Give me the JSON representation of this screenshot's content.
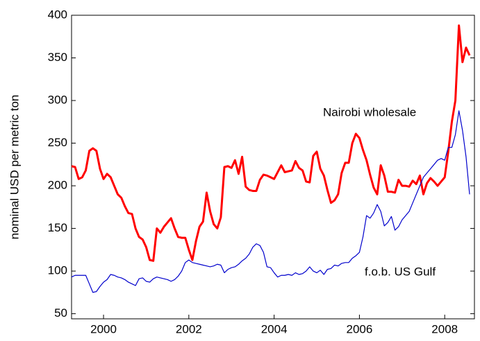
{
  "chart_data": {
    "type": "line",
    "y_label": "nominal USD per metric ton",
    "annotations": [
      "Nairobi wholesale",
      "f.o.b. US Gulf"
    ],
    "x": [
      1999.25,
      1999.333,
      1999.417,
      1999.5,
      1999.583,
      1999.667,
      1999.75,
      1999.833,
      1999.917,
      2000,
      2000.083,
      2000.167,
      2000.25,
      2000.333,
      2000.417,
      2000.5,
      2000.583,
      2000.667,
      2000.75,
      2000.833,
      2000.917,
      2001,
      2001.083,
      2001.167,
      2001.25,
      2001.333,
      2001.417,
      2001.5,
      2001.583,
      2001.667,
      2001.75,
      2001.833,
      2001.917,
      2002,
      2002.083,
      2002.167,
      2002.25,
      2002.333,
      2002.417,
      2002.5,
      2002.583,
      2002.667,
      2002.75,
      2002.833,
      2002.917,
      2003,
      2003.083,
      2003.167,
      2003.25,
      2003.333,
      2003.417,
      2003.5,
      2003.583,
      2003.667,
      2003.75,
      2003.833,
      2003.917,
      2004,
      2004.083,
      2004.167,
      2004.25,
      2004.333,
      2004.417,
      2004.5,
      2004.583,
      2004.667,
      2004.75,
      2004.833,
      2004.917,
      2005,
      2005.083,
      2005.167,
      2005.25,
      2005.333,
      2005.417,
      2005.5,
      2005.583,
      2005.667,
      2005.75,
      2005.833,
      2005.917,
      2006,
      2006.083,
      2006.167,
      2006.25,
      2006.333,
      2006.417,
      2006.5,
      2006.583,
      2006.667,
      2006.75,
      2006.833,
      2006.917,
      2007,
      2007.083,
      2007.167,
      2007.25,
      2007.333,
      2007.417,
      2007.5,
      2007.583,
      2007.667,
      2007.75,
      2007.833,
      2007.917,
      2008,
      2008.083,
      2008.167,
      2008.25,
      2008.333,
      2008.417,
      2008.5,
      2008.583
    ],
    "series": [
      {
        "name": "Nairobi wholesale",
        "color": "#ff0000",
        "values": [
          223,
          222,
          208,
          210,
          218,
          241,
          244,
          241,
          220,
          208,
          214,
          210,
          200,
          190,
          186,
          176,
          168,
          167,
          150,
          140,
          137,
          128,
          113,
          112,
          150,
          145,
          152,
          157,
          162,
          150,
          140,
          139,
          139,
          125,
          113,
          135,
          152,
          158,
          192,
          170,
          155,
          150,
          163,
          222,
          223,
          221,
          230,
          214,
          234,
          199,
          195,
          194,
          194,
          207,
          213,
          212,
          210,
          208,
          216,
          224,
          216,
          217,
          218,
          229,
          221,
          218,
          205,
          204,
          235,
          240,
          220,
          212,
          195,
          180,
          183,
          190,
          215,
          227,
          227,
          250,
          261,
          256,
          242,
          230,
          213,
          198,
          190,
          224,
          212,
          193,
          193,
          192,
          207,
          200,
          200,
          199,
          206,
          202,
          212,
          190,
          203,
          209,
          205,
          200,
          205,
          210,
          240,
          275,
          300,
          388,
          345,
          362,
          353
        ]
      },
      {
        "name": "f.o.b. US Gulf",
        "color": "#0000cc",
        "values": [
          93,
          95,
          95,
          95,
          95,
          85,
          75,
          76,
          82,
          87,
          90,
          96,
          95,
          93,
          92,
          90,
          87,
          85,
          83,
          91,
          92,
          88,
          87,
          91,
          93,
          92,
          91,
          90,
          88,
          90,
          94,
          100,
          110,
          113,
          110,
          109,
          108,
          107,
          106,
          105,
          106,
          108,
          107,
          98,
          102,
          104,
          105,
          108,
          112,
          115,
          120,
          128,
          132,
          130,
          122,
          105,
          104,
          98,
          93,
          95,
          95,
          96,
          95,
          98,
          96,
          97,
          100,
          105,
          100,
          98,
          101,
          96,
          102,
          103,
          107,
          106,
          109,
          110,
          110,
          115,
          118,
          122,
          140,
          165,
          162,
          168,
          178,
          170,
          153,
          157,
          164,
          148,
          152,
          160,
          165,
          170,
          180,
          190,
          200,
          210,
          215,
          220,
          225,
          230,
          232,
          230,
          245,
          245,
          260,
          288,
          265,
          234,
          190
        ]
      }
    ],
    "xlim": [
      1999.25,
      2008.583
    ],
    "xticks": [
      2000,
      2002,
      2004,
      2006,
      2008
    ],
    "ylim": [
      44,
      400
    ],
    "yticks": [
      50,
      100,
      150,
      200,
      250,
      300,
      350,
      400
    ]
  }
}
